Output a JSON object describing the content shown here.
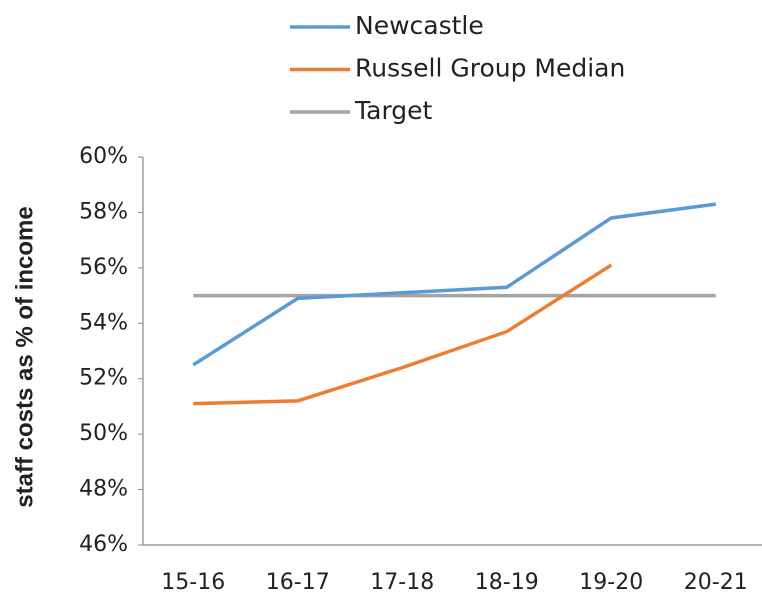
{
  "chart_data": {
    "type": "line",
    "categories": [
      "15-16",
      "16-17",
      "17-18",
      "18-19",
      "19-20",
      "20-21"
    ],
    "series": [
      {
        "name": "Newcastle",
        "color": "#5b9bd5",
        "values": [
          52.5,
          54.9,
          55.1,
          55.3,
          57.8,
          58.3
        ]
      },
      {
        "name": "Russell Group Median",
        "color": "#ed7d31",
        "values": [
          51.1,
          51.2,
          52.4,
          53.7,
          56.1,
          null
        ]
      },
      {
        "name": "Target",
        "color": "#a5a5a5",
        "values": [
          55,
          55,
          55,
          55,
          55,
          55
        ]
      }
    ],
    "y_label": "staff costs as % of income",
    "ylim": [
      46,
      60
    ],
    "yticks": [
      {
        "value": 46,
        "label": "46%"
      },
      {
        "value": 48,
        "label": "48%"
      },
      {
        "value": 50,
        "label": "50%"
      },
      {
        "value": 52,
        "label": "52%"
      },
      {
        "value": 54,
        "label": "54%"
      },
      {
        "value": 56,
        "label": "56%"
      },
      {
        "value": 58,
        "label": "58%"
      },
      {
        "value": 60,
        "label": "60%"
      }
    ],
    "grid": false,
    "legend": "top"
  }
}
